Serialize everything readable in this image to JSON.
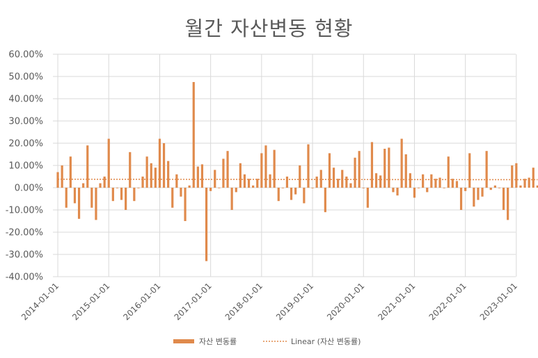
{
  "chart_data": {
    "type": "bar",
    "title": "월간 자산변동 현황",
    "series_name": "자산 변동률",
    "trendline_name": "Linear (자산 변동률)",
    "bar_color": "#E08A4C",
    "trend_color": "#E08A4C",
    "grid": true,
    "legend_position": "bottom",
    "ylim": [
      -0.4,
      0.6
    ],
    "y_ticks": [
      "60.00%",
      "50.00%",
      "40.00%",
      "30.00%",
      "20.00%",
      "10.00%",
      "0.00%",
      "-10.00%",
      "-20.00%",
      "-30.00%",
      "-40.00%"
    ],
    "x_ticks": [
      "2014-01-01",
      "2015-01-01",
      "2016-01-01",
      "2017-01-01",
      "2018-01-01",
      "2019-01-01",
      "2020-01-01",
      "2021-01-01",
      "2022-01-01",
      "2023-01-01"
    ],
    "start_month": "2014-01",
    "trend_start": 0.038,
    "trend_end": 0.036,
    "values": [
      0.07,
      0.1,
      -0.09,
      0.14,
      -0.07,
      -0.14,
      0.02,
      0.19,
      -0.09,
      -0.145,
      0.02,
      0.05,
      0.22,
      -0.06,
      0.0,
      -0.055,
      -0.1,
      0.16,
      -0.06,
      0.0,
      0.05,
      0.14,
      0.11,
      0.09,
      0.22,
      0.2,
      0.12,
      -0.09,
      0.06,
      -0.04,
      -0.15,
      0.01,
      0.475,
      0.095,
      0.105,
      -0.33,
      -0.015,
      0.08,
      0.0,
      0.13,
      0.165,
      -0.1,
      -0.02,
      0.11,
      0.06,
      0.04,
      0.01,
      0.04,
      0.155,
      0.19,
      0.06,
      0.17,
      -0.06,
      0.0,
      0.05,
      -0.055,
      -0.03,
      0.1,
      -0.07,
      0.195,
      0.0,
      0.05,
      0.08,
      -0.11,
      0.155,
      0.09,
      0.04,
      0.08,
      0.05,
      0.02,
      0.135,
      0.165,
      0.0,
      -0.09,
      0.205,
      0.065,
      0.055,
      0.175,
      0.18,
      -0.02,
      -0.035,
      0.22,
      0.15,
      0.065,
      -0.045,
      0.0,
      0.06,
      -0.02,
      0.06,
      0.04,
      0.045,
      0.0,
      0.14,
      0.04,
      0.03,
      -0.1,
      -0.015,
      0.155,
      -0.085,
      -0.055,
      -0.04,
      0.165,
      -0.01,
      0.01,
      0.0,
      -0.1,
      -0.145,
      0.1,
      0.11,
      0.01,
      0.04,
      0.045,
      0.09,
      0.01
    ]
  }
}
